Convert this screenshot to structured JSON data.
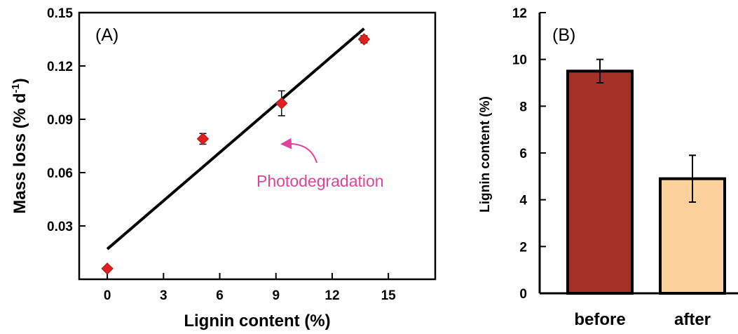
{
  "chart_data": [
    {
      "type": "scatter",
      "panel_label": "(A)",
      "xlabel": "Lignin content (%)",
      "ylabel_main": "Mass loss (% d",
      "ylabel_sup": "-1",
      "ylabel_close": ")",
      "xlim": [
        -1.5,
        17.5
      ],
      "ylim": [
        0,
        0.15
      ],
      "xticks": [
        "0",
        "3",
        "6",
        "9",
        "12",
        "15"
      ],
      "yticks": [
        "0.03",
        "0.06",
        "0.09",
        "0.12",
        "0.15"
      ],
      "points": [
        {
          "x": 0.0,
          "y": 0.006,
          "err": 0.0
        },
        {
          "x": 5.1,
          "y": 0.079,
          "err": 0.003
        },
        {
          "x": 9.3,
          "y": 0.099,
          "err": 0.007
        },
        {
          "x": 13.7,
          "y": 0.135,
          "err": 0.002
        }
      ],
      "fit_line": {
        "x": [
          0.0,
          13.7
        ],
        "y": [
          0.017,
          0.141
        ]
      },
      "annotation": "Photodegradation",
      "marker_color": "#e02020"
    },
    {
      "type": "bar",
      "panel_label": "(B)",
      "ylabel": "Lignin content (%)",
      "ylim": [
        0,
        12
      ],
      "yticks": [
        "0",
        "2",
        "4",
        "6",
        "8",
        "10",
        "12"
      ],
      "categories": [
        "before",
        "after"
      ],
      "values": [
        9.5,
        4.9
      ],
      "errors": [
        0.5,
        1.0
      ],
      "colors": [
        "#a33128",
        "#fcd19b"
      ]
    }
  ]
}
